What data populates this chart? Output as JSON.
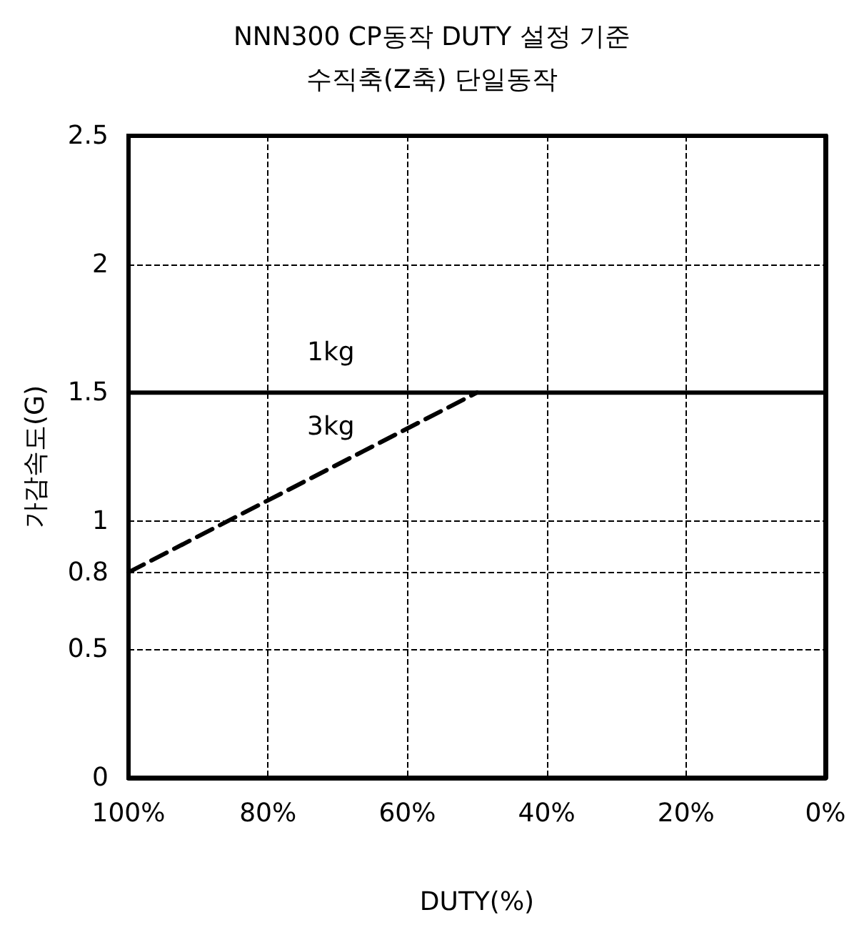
{
  "chart_data": {
    "type": "line",
    "title": "NNN300 CP동작 DUTY 설정 기준",
    "subtitle": "수직축(Z축) 단일동작",
    "xlabel": "DUTY(%)",
    "ylabel": "가감속도(G)",
    "x": [
      100,
      0
    ],
    "series": [
      {
        "name": "1kg",
        "color": "#000000",
        "values": [
          1.5,
          1.5
        ],
        "line_style": "solid"
      },
      {
        "name": "3kg",
        "color": "#000000",
        "x": [
          100,
          50
        ],
        "values": [
          0.8,
          1.5
        ],
        "line_style": "dashed"
      }
    ],
    "xlim": [
      100,
      0
    ],
    "xticks": [
      {
        "value": 100,
        "label": "100%"
      },
      {
        "value": 80,
        "label": "80%"
      },
      {
        "value": 60,
        "label": "60%"
      },
      {
        "value": 40,
        "label": "40%"
      },
      {
        "value": 20,
        "label": "20%"
      },
      {
        "value": 0,
        "label": "0%"
      }
    ],
    "ylim": [
      0,
      2.5
    ],
    "yticks": [
      0,
      0.5,
      0.8,
      1,
      1.5,
      2,
      2.5
    ],
    "grid": true,
    "legend": false,
    "marker": "none"
  }
}
